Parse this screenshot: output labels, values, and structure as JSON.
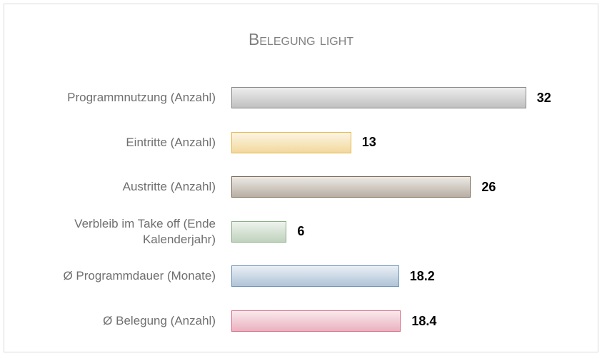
{
  "chart_data": {
    "type": "bar",
    "orientation": "horizontal",
    "title": "Belegung light",
    "categories": [
      "Programmnutzung (Anzahl)",
      "Eintritte (Anzahl)",
      "Austritte (Anzahl)",
      "Verbleib im Take off (Ende Kalenderjahr)",
      "Ø Programmdauer (Monate)",
      "Ø Belegung (Anzahl)"
    ],
    "values": [
      32,
      13,
      26,
      6,
      18.2,
      18.4
    ],
    "colors": [
      "#8c8c8c",
      "#e8b84a",
      "#7e6e58",
      "#8cae88",
      "#6f93b8",
      "#d8708a"
    ]
  }
}
